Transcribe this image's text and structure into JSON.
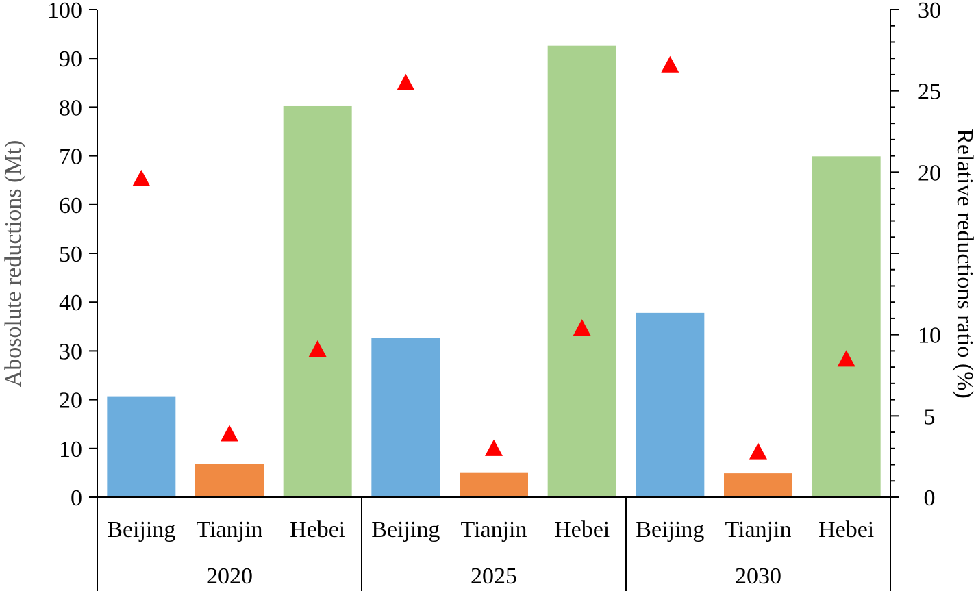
{
  "chart_data": {
    "type": "bar",
    "groups": [
      "2020",
      "2025",
      "2030"
    ],
    "categories": [
      "Beijing",
      "Tianjin",
      "Hebei"
    ],
    "series": [
      {
        "axis": "left",
        "kind": "bar",
        "values": [
          [
            20.7,
            6.8,
            80.2
          ],
          [
            32.7,
            5.1,
            92.6
          ],
          [
            37.8,
            4.9,
            69.9
          ]
        ],
        "colors": [
          "#6caddd",
          "#f08a43",
          "#a9d18e"
        ]
      },
      {
        "axis": "right",
        "kind": "marker",
        "marker": "triangle",
        "color": "#ff0000",
        "values": [
          [
            19.6,
            3.9,
            9.1
          ],
          [
            25.5,
            3.0,
            10.4
          ],
          [
            26.6,
            2.8,
            8.5
          ]
        ]
      }
    ],
    "left_axis": {
      "label": "Abosolute reductions (Mt)",
      "ylim": [
        0,
        100
      ],
      "ticks": [
        "0",
        "10",
        "20",
        "30",
        "40",
        "50",
        "60",
        "70",
        "80",
        "90",
        "100"
      ]
    },
    "right_axis": {
      "label": "Relative reductions ratio  (%)",
      "ylim": [
        0,
        30
      ],
      "ticks": [
        "0",
        "5",
        "10",
        "20",
        "25",
        "30"
      ],
      "tick_values": [
        0,
        5,
        10,
        20,
        25,
        30
      ]
    },
    "grid": false,
    "legend": "none"
  }
}
